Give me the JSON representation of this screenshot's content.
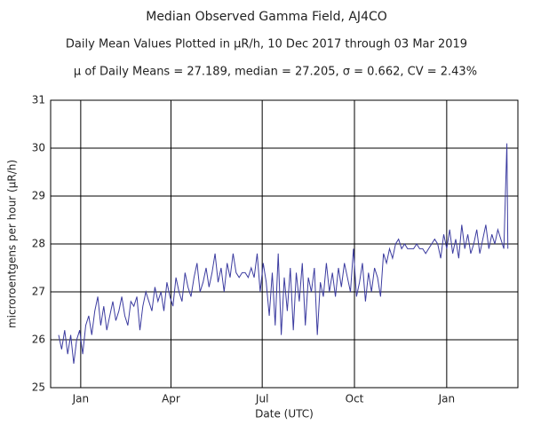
{
  "chart_data": {
    "type": "line",
    "title": "Median Observed Gamma Field, AJ4CO",
    "subtitle": "Daily Mean Values Plotted in μR/h, 10 Dec 2017 through 03 Mar 2019",
    "annotation": "μ of Daily Means = 27.189,   median = 27.205,   σ = 0.662,   CV = 2.43%",
    "x_label": "Date (UTC)",
    "y_label": "microroentgens per hour (μR/h)",
    "x": [
      0,
      3,
      6,
      9,
      12,
      15,
      18,
      21,
      24,
      27,
      30,
      33,
      36,
      39,
      42,
      45,
      48,
      51,
      54,
      57,
      60,
      63,
      66,
      69,
      72,
      75,
      78,
      81,
      84,
      87,
      90,
      93,
      96,
      99,
      102,
      105,
      108,
      111,
      114,
      117,
      120,
      123,
      126,
      129,
      132,
      135,
      138,
      141,
      144,
      147,
      150,
      153,
      156,
      159,
      162,
      165,
      168,
      171,
      174,
      177,
      180,
      183,
      186,
      189,
      192,
      195,
      198,
      201,
      204,
      207,
      210,
      213,
      216,
      219,
      222,
      225,
      228,
      231,
      234,
      237,
      240,
      243,
      246,
      249,
      252,
      255,
      258,
      261,
      264,
      267,
      270,
      273,
      276,
      279,
      282,
      285,
      288,
      291,
      294,
      297,
      300,
      303,
      306,
      309,
      312,
      315,
      318,
      321,
      324,
      327,
      330,
      333,
      336,
      339,
      342,
      345,
      348,
      351,
      354,
      357,
      360,
      363,
      366,
      369,
      372,
      375,
      378,
      381,
      384,
      387,
      390,
      393,
      396,
      399,
      402,
      405,
      408,
      411,
      414,
      417,
      420,
      423,
      426,
      429,
      432,
      435,
      438,
      441,
      444,
      447,
      448
    ],
    "series": [
      {
        "name": "Daily mean",
        "color": "#3c3ca0",
        "values": [
          26.1,
          25.8,
          26.2,
          25.7,
          26.1,
          25.5,
          26.0,
          26.2,
          25.7,
          26.3,
          26.5,
          26.1,
          26.6,
          26.9,
          26.3,
          26.7,
          26.2,
          26.5,
          26.8,
          26.4,
          26.6,
          26.9,
          26.5,
          26.3,
          26.8,
          26.7,
          26.9,
          26.2,
          26.7,
          27.0,
          26.8,
          26.6,
          27.1,
          26.8,
          27.0,
          26.6,
          27.2,
          26.9,
          26.7,
          27.3,
          27.0,
          26.8,
          27.4,
          27.1,
          26.9,
          27.3,
          27.6,
          27.0,
          27.2,
          27.5,
          27.1,
          27.4,
          27.8,
          27.2,
          27.5,
          27.0,
          27.6,
          27.3,
          27.8,
          27.4,
          27.3,
          27.4,
          27.4,
          27.3,
          27.5,
          27.3,
          27.8,
          27.0,
          27.6,
          27.2,
          26.5,
          27.4,
          26.3,
          27.8,
          26.1,
          27.3,
          26.6,
          27.5,
          26.2,
          27.4,
          26.8,
          27.6,
          26.3,
          27.3,
          27.0,
          27.5,
          26.1,
          27.2,
          26.9,
          27.6,
          27.0,
          27.4,
          26.9,
          27.5,
          27.1,
          27.6,
          27.3,
          27.0,
          27.9,
          26.9,
          27.2,
          27.6,
          26.8,
          27.4,
          27.0,
          27.5,
          27.3,
          26.9,
          27.8,
          27.6,
          27.9,
          27.7,
          28.0,
          28.1,
          27.9,
          28.0,
          27.9,
          27.9,
          27.9,
          28.0,
          27.9,
          27.9,
          27.8,
          27.9,
          28.0,
          28.1,
          28.0,
          27.7,
          28.2,
          27.9,
          28.3,
          27.8,
          28.1,
          27.7,
          28.4,
          27.9,
          28.2,
          27.8,
          28.0,
          28.3,
          27.8,
          28.1,
          28.4,
          27.9,
          28.2,
          28.0,
          28.3,
          28.1,
          27.9,
          30.1,
          27.9
        ]
      }
    ],
    "xlim": [
      -8,
      458
    ],
    "xticks": [
      {
        "value": 22,
        "label": "Jan"
      },
      {
        "value": 112,
        "label": "Apr"
      },
      {
        "value": 203,
        "label": "Jul"
      },
      {
        "value": 295,
        "label": "Oct"
      },
      {
        "value": 387,
        "label": "Jan"
      }
    ],
    "ylim": [
      25,
      31
    ],
    "yticks": [
      25,
      26,
      27,
      28,
      29,
      30,
      31
    ],
    "grid": true
  }
}
